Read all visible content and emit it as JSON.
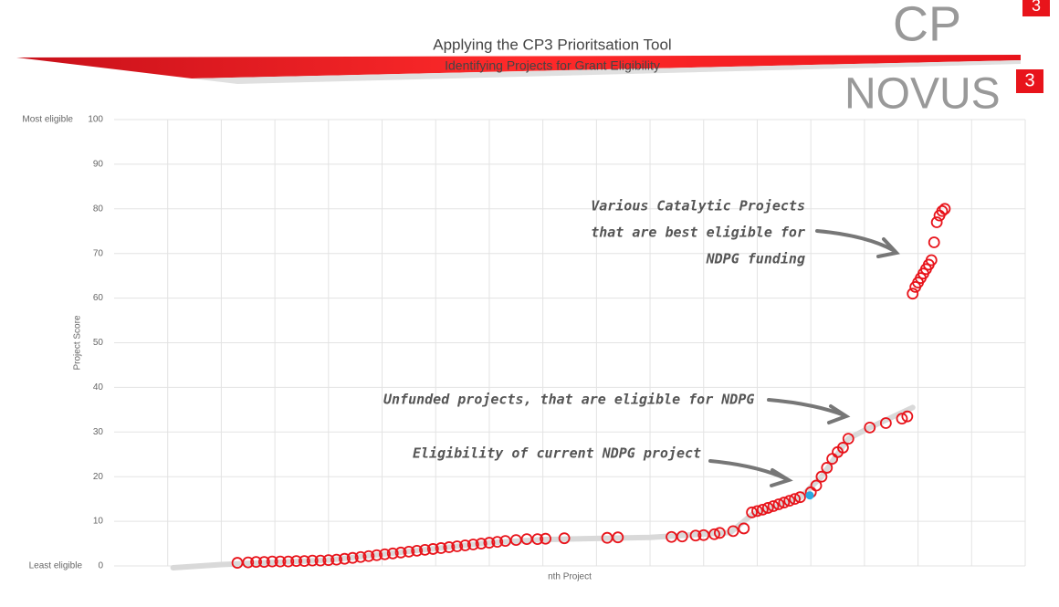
{
  "header": {
    "title": "Applying the CP3 Prioritsation Tool",
    "subtitle": "Identifying Projects for Grant Eligibility",
    "logo1": {
      "text": "CP",
      "badge": "3"
    },
    "logo2": {
      "text": "NOVUS",
      "badge": "3"
    }
  },
  "chart_data": {
    "type": "scatter",
    "x_label": "nth Project",
    "y_label": "Project Score",
    "y_top_label": "Most eligible",
    "y_bottom_label": "Least eligible",
    "xlim": [
      0,
      170
    ],
    "xticks": [
      10,
      20,
      30,
      40,
      50,
      60,
      70,
      80,
      90,
      100,
      110,
      120,
      130,
      140,
      150,
      160,
      170
    ],
    "ylim": [
      0,
      100
    ],
    "yticks": [
      0,
      10,
      20,
      30,
      40,
      50,
      60,
      70,
      80,
      90,
      100
    ],
    "grid": true,
    "series": [
      {
        "kind": "line",
        "color": "#d9d9d9",
        "x": [
          11,
          20,
          40,
          60,
          70,
          80,
          100,
          115,
          119,
          128,
          132,
          137,
          141,
          149
        ],
        "values": [
          -0.4,
          0.3,
          1.3,
          3.9,
          5.2,
          5.9,
          6.4,
          7.5,
          11.5,
          15.3,
          20,
          28.5,
          31,
          35.5
        ]
      },
      {
        "kind": "circles",
        "color": "#e8141b",
        "x": [
          23,
          25,
          26.5,
          28,
          29.5,
          31,
          32.5,
          34,
          35.5,
          37,
          38.5,
          40,
          41.5,
          43,
          44.5,
          46,
          47.5,
          49,
          50.5,
          52,
          53.5,
          55,
          56.5,
          58,
          59.5,
          61,
          62.5,
          64,
          65.5,
          67,
          68.5,
          70,
          71.5,
          73,
          75,
          77,
          79,
          80.5,
          84,
          92,
          94,
          104,
          106,
          108.5,
          110,
          112,
          113,
          115.5,
          117.5,
          119,
          120,
          121,
          122,
          123,
          124,
          125,
          126,
          127,
          128,
          130,
          131,
          132,
          133,
          134,
          135,
          136,
          137,
          141,
          144,
          147,
          148,
          149,
          149.5,
          150,
          150.5,
          151,
          151.5,
          152,
          152.5,
          153,
          153.5,
          154,
          154.5,
          155
        ],
        "values": [
          0.7,
          0.8,
          0.9,
          0.9,
          1.0,
          1.0,
          1.0,
          1.1,
          1.1,
          1.2,
          1.2,
          1.3,
          1.4,
          1.6,
          1.8,
          2.0,
          2.2,
          2.4,
          2.6,
          2.8,
          3.0,
          3.2,
          3.4,
          3.6,
          3.8,
          4.0,
          4.2,
          4.4,
          4.6,
          4.8,
          5.0,
          5.2,
          5.4,
          5.6,
          5.8,
          6.0,
          6.0,
          6.1,
          6.2,
          6.3,
          6.4,
          6.5,
          6.6,
          6.8,
          6.9,
          7.1,
          7.4,
          7.8,
          8.4,
          12,
          12.3,
          12.6,
          13,
          13.4,
          13.8,
          14.2,
          14.6,
          15,
          15.4,
          16.5,
          18,
          20,
          22,
          24,
          25.5,
          26.5,
          28.5,
          31,
          32,
          33,
          33.5,
          61,
          62.5,
          63.5,
          64.5,
          65.5,
          66.5,
          67.5,
          68.5,
          72.5,
          77,
          78.5,
          79.5,
          80
        ]
      },
      {
        "kind": "dot",
        "color": "#29a8e0",
        "x": [
          129.8
        ],
        "values": [
          15.8
        ]
      }
    ],
    "annotations": [
      {
        "lines": [
          "Various Catalytic Projects",
          "that are best eligible for",
          "NDPG funding"
        ]
      },
      {
        "lines": [
          "Unfunded projects, that are eligible for NDPG"
        ]
      },
      {
        "lines": [
          "Eligibility of current NDPG project"
        ]
      }
    ]
  }
}
